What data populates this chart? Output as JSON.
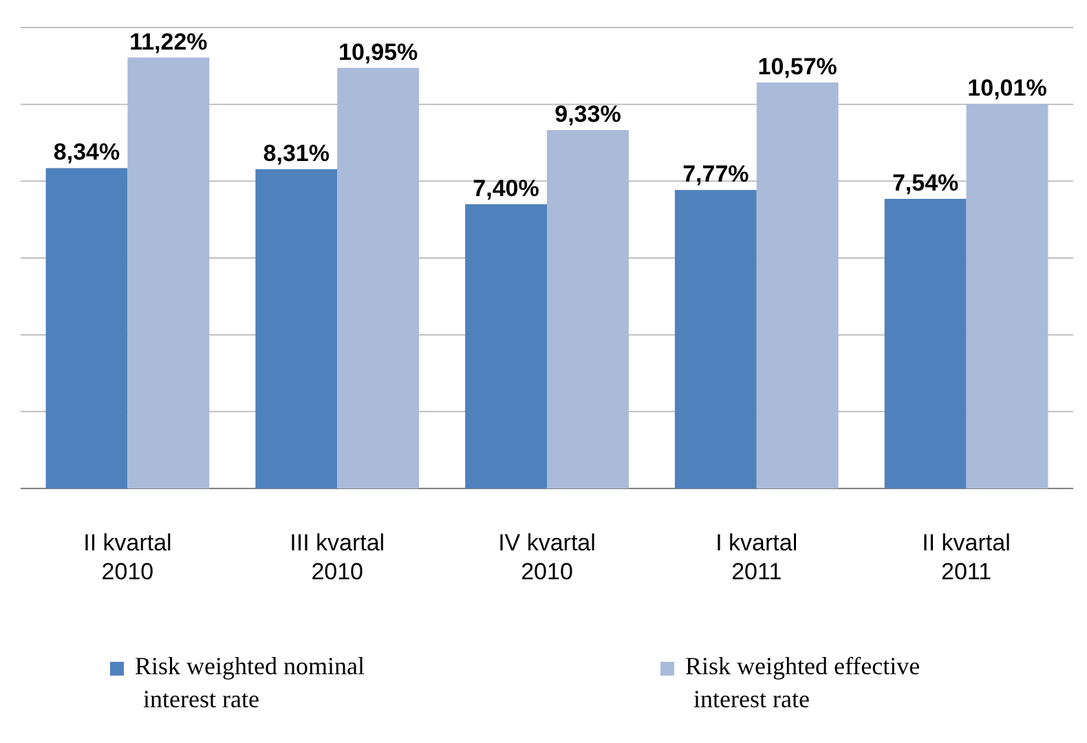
{
  "chart_data": {
    "type": "bar",
    "categories": [
      "II kvartal 2010",
      "III kvartal 2010",
      "IV kvartal 2010",
      "I kvartal 2011",
      "II kvartal 2011"
    ],
    "series": [
      {
        "name": "Risk weighted nominal interest rate",
        "color": "#4f81bd",
        "values": [
          8.34,
          8.31,
          7.4,
          7.77,
          7.54
        ],
        "value_labels": [
          "8,34%",
          "8,31%",
          "7,40%",
          "7,77%",
          "7,54%"
        ]
      },
      {
        "name": "Risk weighted effective interest rate",
        "color": "#aabad9",
        "values": [
          11.22,
          10.95,
          9.33,
          10.57,
          10.01
        ],
        "value_labels": [
          "11,22%",
          "10,95%",
          "9,33%",
          "10,57%",
          "10,01%"
        ]
      }
    ],
    "ylim": [
      0,
      12
    ],
    "yticks": [
      {
        "value": 0,
        "label": null
      },
      {
        "value": 2,
        "label": null
      },
      {
        "value": 4,
        "label": null
      },
      {
        "value": 6,
        "label": null
      },
      {
        "value": 8,
        "label": null
      },
      {
        "value": 10,
        "label": null
      },
      {
        "value": 12,
        "label": null
      }
    ],
    "grid": "y",
    "legend": "bottom",
    "tick_labels": "x"
  }
}
